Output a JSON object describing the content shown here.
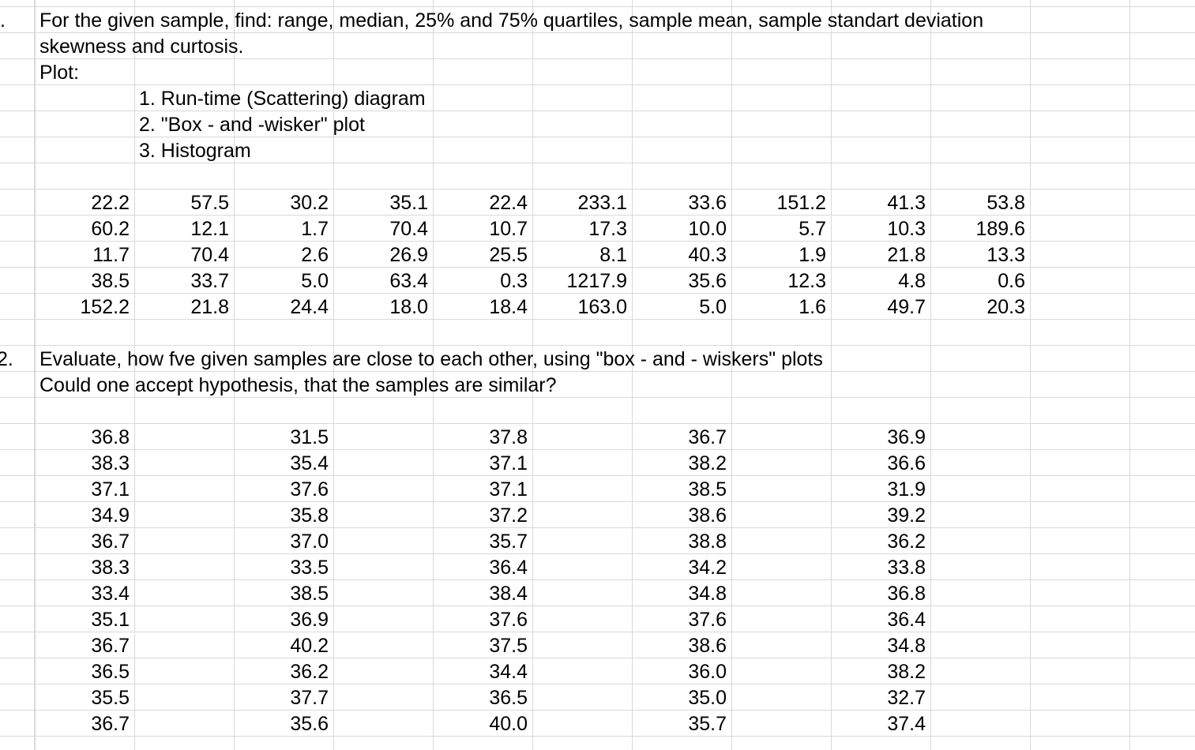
{
  "task1": {
    "number": ".",
    "line1": "For the given sample, find: range, median, 25% and 75% quartiles, sample mean, sample standart deviation",
    "line2": "skewness and curtosis.",
    "plot_label": "Plot:",
    "items": [
      "1. Run-time (Scattering) diagram",
      "2. \"Box - and -wisker\" plot",
      "3. Histogram"
    ],
    "rows": [
      [
        "22.2",
        "57.5",
        "30.2",
        "35.1",
        "22.4",
        "233.1",
        "33.6",
        "151.2",
        "41.3",
        "53.8"
      ],
      [
        "60.2",
        "12.1",
        "1.7",
        "70.4",
        "10.7",
        "17.3",
        "10.0",
        "5.7",
        "10.3",
        "189.6"
      ],
      [
        "11.7",
        "70.4",
        "2.6",
        "26.9",
        "25.5",
        "8.1",
        "40.3",
        "1.9",
        "21.8",
        "13.3"
      ],
      [
        "38.5",
        "33.7",
        "5.0",
        "63.4",
        "0.3",
        "1217.9",
        "35.6",
        "12.3",
        "4.8",
        "0.6"
      ],
      [
        "152.2",
        "21.8",
        "24.4",
        "18.0",
        "18.4",
        "163.0",
        "5.0",
        "1.6",
        "49.7",
        "20.3"
      ]
    ]
  },
  "task2": {
    "number": "2.",
    "line1": "Evaluate, how fve given samples are close to each other, using \"box - and - wiskers\" plots",
    "line2": "Could one accept hypothesis, that the samples are similar?",
    "rows": [
      [
        "36.8",
        "31.5",
        "37.8",
        "36.7",
        "36.9"
      ],
      [
        "38.3",
        "35.4",
        "37.1",
        "38.2",
        "36.6"
      ],
      [
        "37.1",
        "37.6",
        "37.1",
        "38.5",
        "31.9"
      ],
      [
        "34.9",
        "35.8",
        "37.2",
        "38.6",
        "39.2"
      ],
      [
        "36.7",
        "37.0",
        "35.7",
        "38.8",
        "36.2"
      ],
      [
        "38.3",
        "33.5",
        "36.4",
        "34.2",
        "33.8"
      ],
      [
        "33.4",
        "38.5",
        "38.4",
        "34.8",
        "36.8"
      ],
      [
        "35.1",
        "36.9",
        "37.6",
        "37.6",
        "36.4"
      ],
      [
        "36.7",
        "40.2",
        "37.5",
        "38.6",
        "34.8"
      ],
      [
        "36.5",
        "36.2",
        "34.4",
        "36.0",
        "38.2"
      ],
      [
        "35.5",
        "37.7",
        "36.5",
        "35.0",
        "32.7"
      ],
      [
        "36.7",
        "35.6",
        "40.0",
        "35.7",
        "37.4"
      ]
    ]
  }
}
